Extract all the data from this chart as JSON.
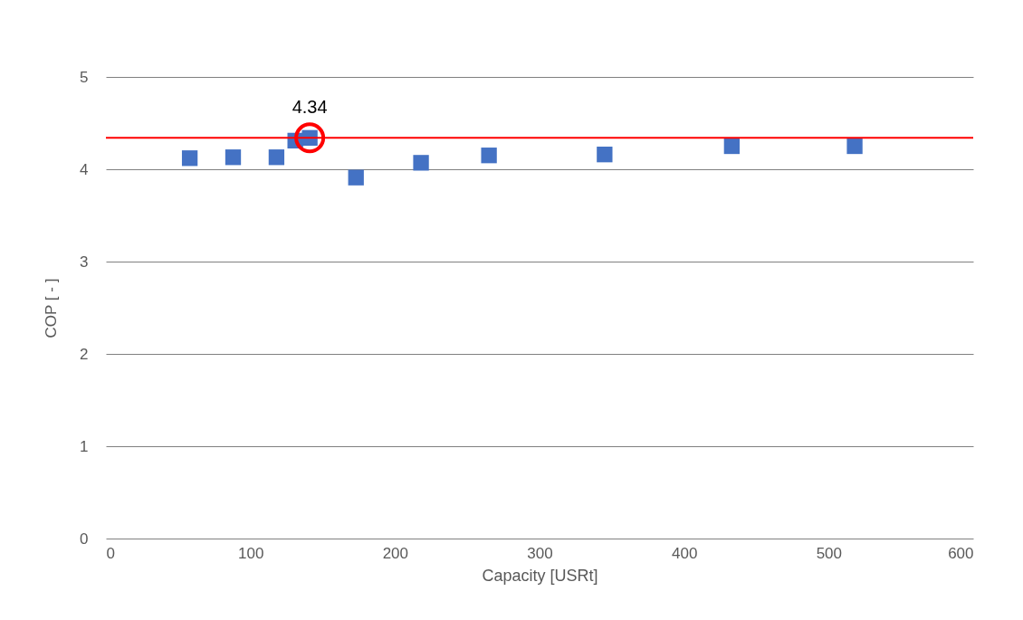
{
  "chart_data": {
    "type": "scatter",
    "xlabel": "Capacity [USRt]",
    "ylabel": "COP [ - ]",
    "x": [
      58,
      88,
      118,
      131,
      141,
      173,
      218,
      265,
      345,
      433,
      518
    ],
    "series": [
      {
        "color": "#4472c4",
        "values": [
          4.12,
          4.13,
          4.13,
          4.31,
          4.34,
          3.91,
          4.07,
          4.15,
          4.16,
          4.25,
          4.25
        ]
      }
    ],
    "marker": "square",
    "xlim": [
      0,
      600
    ],
    "xticks": [
      0,
      100,
      200,
      300,
      400,
      500,
      600
    ],
    "ylim": [
      0,
      5
    ],
    "yticks": [
      0,
      1,
      2,
      3,
      4,
      5
    ],
    "grid": "y",
    "ref_lines": [
      {
        "axis": "y",
        "value": 4.34,
        "color": "#ff0000"
      }
    ],
    "annotations": [
      {
        "text": "4.34",
        "x": 141,
        "y": 4.34
      }
    ]
  }
}
